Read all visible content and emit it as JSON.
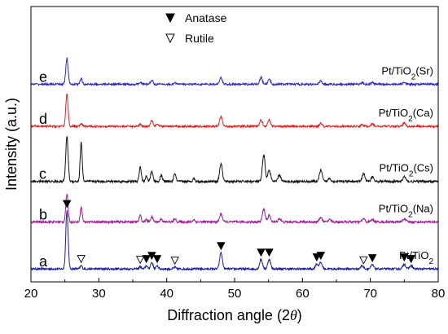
{
  "chart_data": {
    "type": "line",
    "xlabel_text": "Diffraction angle (2",
    "xlabel_symbol": "θ",
    "xlabel_close": ")",
    "ylabel": "Intensity (a.u.)",
    "xlim": [
      20,
      80
    ],
    "xticks": [
      20,
      30,
      40,
      50,
      60,
      70,
      80
    ],
    "y_ticks_shown": false,
    "grid": false,
    "legend": {
      "position": "top-center",
      "entries": [
        {
          "symbol": "filled-triangle",
          "label": "Anatase"
        },
        {
          "symbol": "open-triangle",
          "label": "Rutile"
        }
      ]
    },
    "series": [
      {
        "letter": "a",
        "name_prefix": "Pt/TiO",
        "name_sub": "2",
        "name_suffix": "",
        "color": "#1a1aa6",
        "baseline": 8,
        "noise": 0.6,
        "scale": 1.0,
        "peaks": [
          [
            25.3,
            36,
            0.17
          ],
          [
            27.4,
            2,
            0.15
          ],
          [
            36.1,
            1.5,
            0.15
          ],
          [
            37.0,
            2,
            0.15
          ],
          [
            37.8,
            4,
            0.18
          ],
          [
            38.6,
            2,
            0.15
          ],
          [
            41.2,
            1,
            0.15
          ],
          [
            48.0,
            10,
            0.2
          ],
          [
            53.9,
            6,
            0.2
          ],
          [
            55.1,
            6,
            0.2
          ],
          [
            62.1,
            3,
            0.2
          ],
          [
            62.7,
            4,
            0.2
          ],
          [
            68.8,
            2,
            0.2
          ],
          [
            70.3,
            2.5,
            0.2
          ],
          [
            75.0,
            3,
            0.2
          ],
          [
            76.0,
            2,
            0.2
          ]
        ]
      },
      {
        "letter": "b",
        "name_prefix": "Pt/TiO",
        "name_sub": "2",
        "name_suffix": "(Na)",
        "color": "#9b1e96",
        "baseline": 37,
        "noise": 0.7,
        "scale": 1.0,
        "peaks": [
          [
            25.3,
            17,
            0.17
          ],
          [
            27.4,
            9,
            0.15
          ],
          [
            36.1,
            4,
            0.15
          ],
          [
            37.0,
            1.5,
            0.15
          ],
          [
            37.8,
            3,
            0.18
          ],
          [
            39.2,
            2,
            0.15
          ],
          [
            41.2,
            2,
            0.15
          ],
          [
            44.0,
            1.5,
            0.15
          ],
          [
            48.0,
            5,
            0.2
          ],
          [
            54.3,
            8,
            0.2
          ],
          [
            55.1,
            4,
            0.2
          ],
          [
            56.6,
            2,
            0.2
          ],
          [
            62.7,
            3,
            0.2
          ],
          [
            64.0,
            1.5,
            0.2
          ],
          [
            69.0,
            2,
            0.2
          ],
          [
            70.3,
            1.5,
            0.2
          ],
          [
            75.0,
            2,
            0.2
          ]
        ]
      },
      {
        "letter": "c",
        "name_prefix": "Pt/TiO",
        "name_sub": "2",
        "name_suffix": "(Cs)",
        "color": "#111111",
        "baseline": 62,
        "noise": 0.7,
        "scale": 1.0,
        "peaks": [
          [
            25.3,
            28,
            0.17
          ],
          [
            27.4,
            24,
            0.15
          ],
          [
            36.1,
            9,
            0.15
          ],
          [
            37.0,
            3,
            0.15
          ],
          [
            37.8,
            6,
            0.18
          ],
          [
            39.2,
            4,
            0.15
          ],
          [
            41.2,
            5,
            0.15
          ],
          [
            44.0,
            2,
            0.15
          ],
          [
            48.0,
            11,
            0.2
          ],
          [
            54.3,
            16,
            0.2
          ],
          [
            55.1,
            7,
            0.2
          ],
          [
            56.6,
            4,
            0.2
          ],
          [
            62.7,
            7,
            0.2
          ],
          [
            64.0,
            2,
            0.2
          ],
          [
            69.0,
            5,
            0.2
          ],
          [
            70.3,
            3,
            0.2
          ],
          [
            75.0,
            3,
            0.2
          ]
        ]
      },
      {
        "letter": "d",
        "name_prefix": "Pt/TiO",
        "name_sub": "2",
        "name_suffix": "(Ca)",
        "color": "#e02020",
        "baseline": 96,
        "noise": 0.6,
        "scale": 1.0,
        "peaks": [
          [
            25.3,
            20,
            0.17
          ],
          [
            27.4,
            1.5,
            0.15
          ],
          [
            36.1,
            1.5,
            0.15
          ],
          [
            37.8,
            4,
            0.18
          ],
          [
            38.6,
            1.5,
            0.15
          ],
          [
            48.0,
            6,
            0.2
          ],
          [
            53.9,
            4,
            0.2
          ],
          [
            55.1,
            4,
            0.2
          ],
          [
            62.7,
            2,
            0.2
          ],
          [
            68.8,
            1,
            0.2
          ],
          [
            70.3,
            1.5,
            0.2
          ],
          [
            75.0,
            2,
            0.2
          ]
        ]
      },
      {
        "letter": "e",
        "name_prefix": "Pt/TiO",
        "name_sub": "2",
        "name_suffix": "(Sr)",
        "color": "#2626d9",
        "baseline": 122,
        "noise": 0.6,
        "scale": 1.0,
        "peaks": [
          [
            25.3,
            16,
            0.17
          ],
          [
            27.4,
            3.5,
            0.15
          ],
          [
            36.1,
            1.5,
            0.15
          ],
          [
            37.8,
            2.5,
            0.18
          ],
          [
            41.2,
            1,
            0.15
          ],
          [
            48.0,
            4,
            0.2
          ],
          [
            53.9,
            4,
            0.2
          ],
          [
            55.1,
            3,
            0.2
          ],
          [
            62.7,
            2,
            0.2
          ],
          [
            68.8,
            1,
            0.2
          ],
          [
            70.3,
            1,
            0.2
          ],
          [
            75.0,
            1.5,
            0.2
          ]
        ]
      }
    ],
    "anatase_markers_x": [
      25.3,
      37.0,
      37.8,
      38.6,
      48.0,
      53.9,
      55.1,
      62.1,
      62.7,
      70.3,
      75.0,
      76.0
    ],
    "rutile_markers_x": [
      27.4,
      36.1,
      41.2,
      69.0
    ]
  }
}
